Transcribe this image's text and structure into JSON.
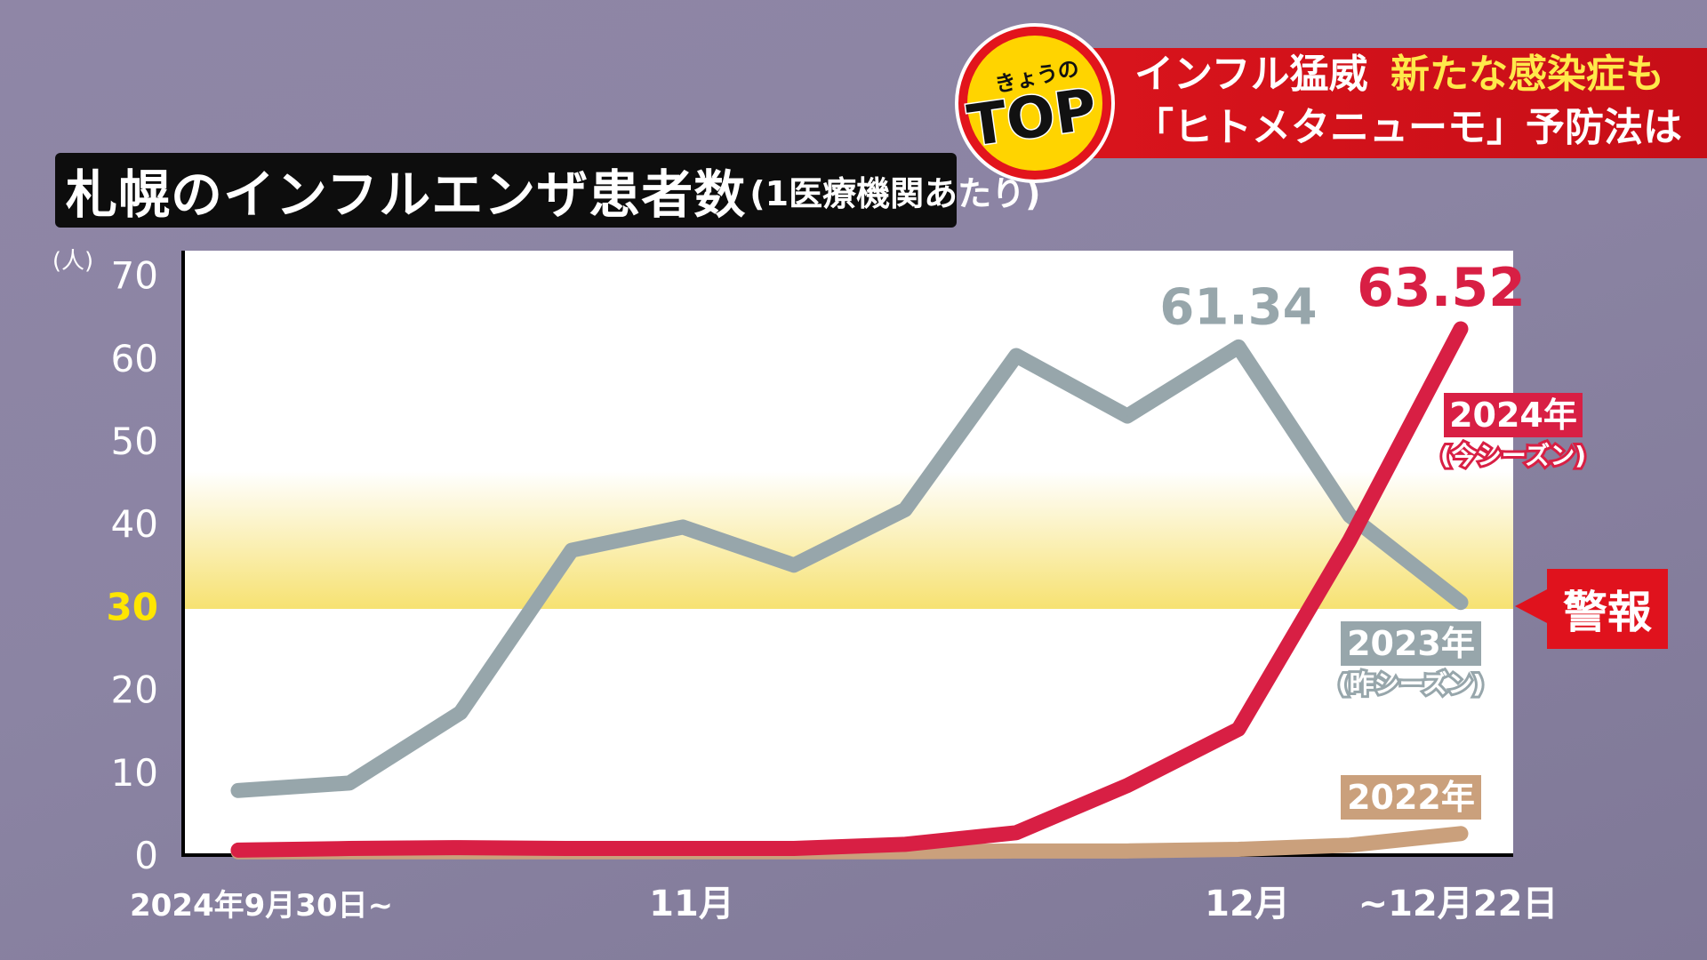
{
  "headline": {
    "logo_small": "きょうの",
    "logo_big": "TOP",
    "line1_a": "インフル猛威",
    "line1_b": "新たな感染症も",
    "line2": "「ヒトメタニューモ」予防法は"
  },
  "title": {
    "main": "札幌のインフルエンザ患者数",
    "sub": "(1医療機関あたり)"
  },
  "warning_badge": "警報",
  "colors": {
    "s2024": "#d81f44",
    "s2023": "#97a6ab",
    "s2022": "#caa07c",
    "warning_band": "#f6e06a",
    "threshold_label": "#ffe600"
  },
  "chart_data": {
    "type": "line",
    "ylabel": "(人)",
    "ylim": [
      0,
      70
    ],
    "yticks": [
      "0",
      "10",
      "20",
      "30",
      "40",
      "50",
      "60",
      "70"
    ],
    "threshold": 30,
    "x": [
      1,
      2,
      3,
      4,
      5,
      6,
      7,
      8,
      9,
      10,
      11,
      12
    ],
    "x_tick_labels": [
      {
        "at": 1,
        "label": "2024年9月30日~"
      },
      {
        "at": 5,
        "label": "11月"
      },
      {
        "at": 10,
        "label": "12月"
      },
      {
        "at": 12,
        "label": "~12月22日"
      }
    ],
    "series": [
      {
        "name": "2023年",
        "subname": "(昨シーズン)",
        "key": "s2023",
        "values": [
          7.8,
          8.7,
          17.2,
          36.8,
          39.6,
          35,
          41.7,
          60.3,
          53,
          61.34,
          41,
          30.5
        ]
      },
      {
        "name": "2024年",
        "subname": "(今シーズン)",
        "key": "s2024",
        "values": [
          0.6,
          0.8,
          0.9,
          0.8,
          0.8,
          0.8,
          1.3,
          2.7,
          8.4,
          15.2,
          38,
          63.52
        ]
      },
      {
        "name": "2022年",
        "subname": "",
        "key": "s2022",
        "values": [
          0.4,
          0.4,
          0.4,
          0.4,
          0.4,
          0.4,
          0.4,
          0.5,
          0.5,
          0.7,
          1.2,
          2.6
        ]
      }
    ],
    "annotations": [
      {
        "series": "s2023",
        "point": 10,
        "text": "61.34"
      },
      {
        "series": "s2024",
        "point": 12,
        "text": "63.52"
      }
    ]
  }
}
